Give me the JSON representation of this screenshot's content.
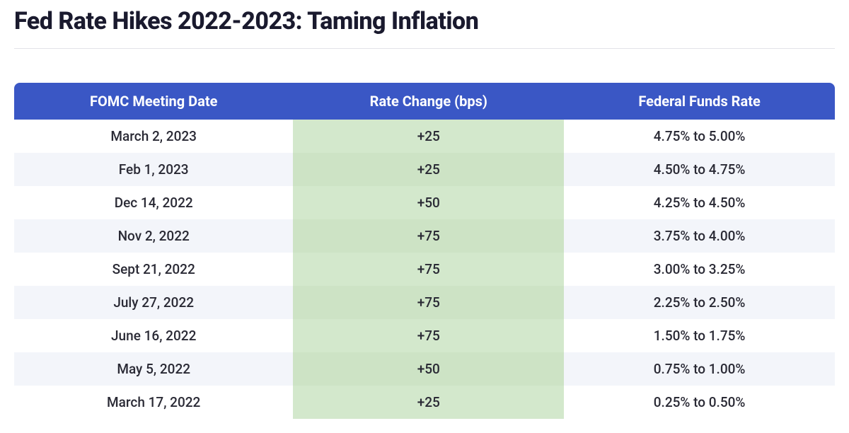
{
  "title": "Fed Rate Hikes 2022-2023: Taming Inflation",
  "table": {
    "columns": [
      "FOMC Meeting Date",
      "Rate Change (bps)",
      "Federal Funds Rate"
    ],
    "header_bg": "#3a57c5",
    "header_fg": "#ffffff",
    "highlight_col_bg": "#d3e8cc",
    "row_alt_bg": "#f3f5fa",
    "title_fontsize": 34,
    "header_fontsize": 20,
    "cell_fontsize": 19,
    "rows": [
      {
        "date": "March 2, 2023",
        "change": "+25",
        "rate": "4.75% to 5.00%"
      },
      {
        "date": "Feb 1, 2023",
        "change": "+25",
        "rate": "4.50% to 4.75%"
      },
      {
        "date": "Dec 14, 2022",
        "change": "+50",
        "rate": "4.25% to 4.50%"
      },
      {
        "date": "Nov 2, 2022",
        "change": "+75",
        "rate": "3.75% to 4.00%"
      },
      {
        "date": "Sept 21, 2022",
        "change": "+75",
        "rate": "3.00% to 3.25%"
      },
      {
        "date": "July 27, 2022",
        "change": "+75",
        "rate": "2.25% to 2.50%"
      },
      {
        "date": "June 16, 2022",
        "change": "+75",
        "rate": "1.50% to 1.75%"
      },
      {
        "date": "May 5, 2022",
        "change": "+50",
        "rate": "0.75% to 1.00%"
      },
      {
        "date": "March 17, 2022",
        "change": "+25",
        "rate": "0.25% to 0.50%"
      }
    ]
  }
}
